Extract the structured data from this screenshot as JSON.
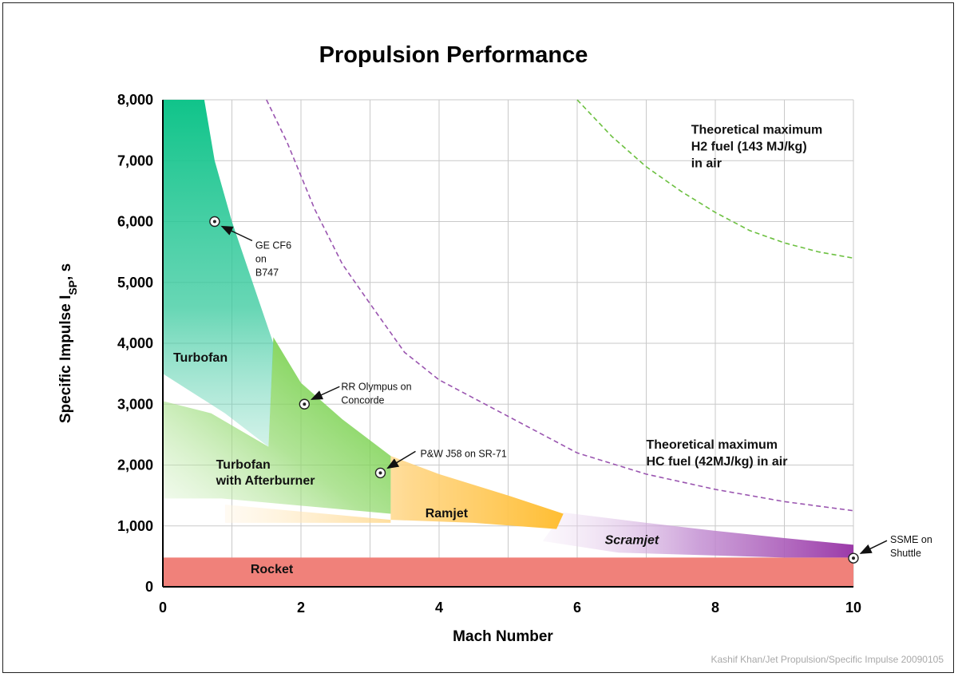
{
  "chart_data": {
    "type": "area",
    "title": "Propulsion Performance",
    "xlabel": "Mach Number",
    "ylabel": "Specific Impulse I",
    "ylabel_sub": "SP",
    "ylabel_tail": ",  s",
    "xlim": [
      0,
      10
    ],
    "ylim": [
      0,
      8000
    ],
    "x_ticks": [
      0,
      2,
      4,
      6,
      8,
      10
    ],
    "x_tick_labels": [
      "0",
      "2",
      "4",
      "6",
      "8",
      "10"
    ],
    "y_ticks": [
      0,
      1000,
      2000,
      3000,
      4000,
      5000,
      6000,
      7000,
      8000
    ],
    "y_tick_labels": [
      "0",
      "1,000",
      "2,000",
      "3,000",
      "4,000",
      "5,000",
      "6,000",
      "7,000",
      "8,000"
    ],
    "grid": true,
    "regions": [
      {
        "name": "Rocket",
        "color": "#ee7d76",
        "polygon": [
          [
            0,
            0
          ],
          [
            10,
            0
          ],
          [
            10,
            480
          ],
          [
            0,
            480
          ]
        ]
      },
      {
        "name": "Turbofan",
        "color": "#1ec48a",
        "polygon": [
          [
            0,
            8000
          ],
          [
            0.6,
            8000
          ],
          [
            0.75,
            7000
          ],
          [
            1.0,
            6000
          ],
          [
            1.3,
            5000
          ],
          [
            1.6,
            4000
          ],
          [
            1.53,
            2300
          ],
          [
            0.9,
            2850
          ],
          [
            0,
            3500
          ]
        ]
      },
      {
        "name": "Turbofan with Afterburner",
        "color": "#6ccf48",
        "polygon": [
          [
            1.6,
            4100
          ],
          [
            2.0,
            3350
          ],
          [
            2.6,
            2750
          ],
          [
            3.3,
            2150
          ],
          [
            3.3,
            1200
          ],
          [
            0.85,
            1450
          ],
          [
            0,
            1450
          ],
          [
            0,
            3050
          ],
          [
            0.7,
            2850
          ],
          [
            1.53,
            2300
          ]
        ]
      },
      {
        "name": "Ramjet",
        "color": "#ffbf3a",
        "polygon": [
          [
            3.3,
            2150
          ],
          [
            4.0,
            1850
          ],
          [
            5.0,
            1500
          ],
          [
            5.8,
            1200
          ],
          [
            5.7,
            950
          ],
          [
            4.5,
            1050
          ],
          [
            3.3,
            1100
          ],
          [
            0.9,
            1350
          ],
          [
            0.9,
            1050
          ],
          [
            3.3,
            1050
          ]
        ]
      },
      {
        "name": "Scramjet",
        "color": "#a04fb4",
        "polygon": [
          [
            5.8,
            1220
          ],
          [
            7.0,
            1050
          ],
          [
            8.0,
            920
          ],
          [
            9.0,
            800
          ],
          [
            10,
            690
          ],
          [
            10,
            480
          ],
          [
            9.0,
            480
          ],
          [
            6.6,
            560
          ],
          [
            5.5,
            750
          ]
        ]
      }
    ],
    "curves": [
      {
        "name": "Theoretical maximum HC fuel (42MJ/kg) in air",
        "color": "#9a55b0",
        "x": [
          1.5,
          1.8,
          2.2,
          2.6,
          3.0,
          3.5,
          4.0,
          5.0,
          6.0,
          7.0,
          8.0,
          9.0,
          10.0
        ],
        "y": [
          8000,
          7300,
          6200,
          5300,
          4650,
          3850,
          3400,
          2800,
          2200,
          1850,
          1600,
          1400,
          1250
        ]
      },
      {
        "name": "Theoretical maximum H2 fuel (143 MJ/kg) in air",
        "color": "#6cc040",
        "x": [
          6.0,
          6.5,
          7.0,
          7.5,
          8.0,
          8.5,
          9.0,
          9.5,
          10.0
        ],
        "y": [
          8000,
          7400,
          6900,
          6500,
          6150,
          5850,
          5650,
          5500,
          5400
        ]
      }
    ],
    "engines": [
      {
        "label": [
          "GE CF6",
          "on",
          "B747"
        ],
        "x": 0.75,
        "y": 6000
      },
      {
        "label": [
          "RR Olympus on",
          "Concorde"
        ],
        "x": 2.05,
        "y": 3000
      },
      {
        "label": [
          "P&W J58 on SR-71"
        ],
        "x": 3.15,
        "y": 1870
      },
      {
        "label": [
          "SSME on",
          "Shuttle"
        ],
        "x": 10.0,
        "y": 470
      }
    ],
    "region_labels": [
      {
        "text": [
          "Turbofan"
        ],
        "x": 0.15,
        "y": 3700,
        "italic": false
      },
      {
        "text": [
          "Turbofan",
          "with Afterburner"
        ],
        "x": 0.77,
        "y": 1940,
        "italic": false
      },
      {
        "text": [
          "Ramjet"
        ],
        "x": 3.8,
        "y": 1140,
        "italic": false
      },
      {
        "text": [
          "Scramjet"
        ],
        "x": 6.4,
        "y": 700,
        "italic": true
      },
      {
        "text": [
          "Rocket"
        ],
        "x": 1.27,
        "y": 220,
        "italic": false
      }
    ],
    "theory_labels": [
      {
        "text": [
          "Theoretical maximum",
          "H2 fuel (143 MJ/kg)",
          "in air"
        ],
        "x": 7.65,
        "y": 7440
      },
      {
        "text": [
          "Theoretical maximum",
          "HC fuel (42MJ/kg) in air"
        ],
        "x": 7.0,
        "y": 2270
      }
    ]
  },
  "credit": "Kashif Khan/Jet Propulsion/Specific Impulse 20090105"
}
